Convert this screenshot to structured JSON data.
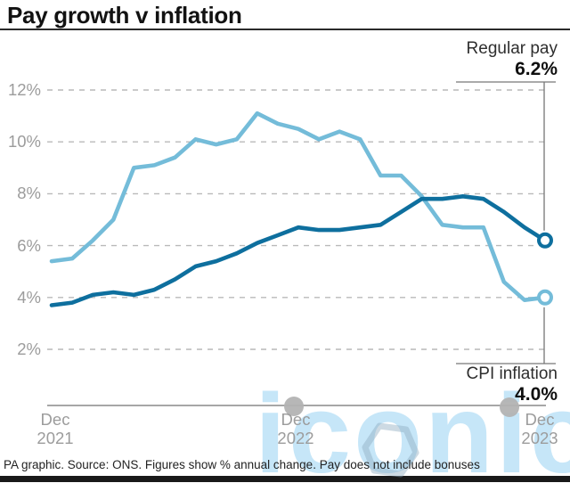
{
  "title": "Pay growth v inflation",
  "annotations": {
    "regular_pay_label": "Regular pay",
    "regular_pay_value": "6.2%",
    "cpi_label": "CPI inflation",
    "cpi_value": "4.0%"
  },
  "footer": "PA graphic. Source: ONS. Figures show % annual change. Pay does not include bonuses",
  "watermark": {
    "text": "iconic"
  },
  "colors": {
    "regular_pay": "#0e6f9e",
    "cpi_inflation": "#74bcd9",
    "gridline": "#b9b9b9",
    "axis": "#8a8a8a",
    "annotation_line": "#777777",
    "axis_text": "#9c9c9c"
  },
  "chart_data": {
    "type": "line",
    "title": "Pay growth v inflation",
    "xlabel": "",
    "ylabel": "% annual change",
    "ylim": [
      2,
      12
    ],
    "grid": "horizontal dashed",
    "yticks": [
      "12%",
      "10%",
      "8%",
      "6%",
      "4%",
      "2%"
    ],
    "ytick_values": [
      12,
      10,
      8,
      6,
      4,
      2
    ],
    "xticks": [
      {
        "line1": "Dec",
        "line2": "2021"
      },
      {
        "line1": "Dec",
        "line2": "2022"
      },
      {
        "line1": "Dec",
        "line2": "2023"
      }
    ],
    "xtick_positions": [
      0,
      12,
      24
    ],
    "x": [
      "Dec 2021",
      "Jan 2022",
      "Feb 2022",
      "Mar 2022",
      "Apr 2022",
      "May 2022",
      "Jun 2022",
      "Jul 2022",
      "Aug 2022",
      "Sep 2022",
      "Oct 2022",
      "Nov 2022",
      "Dec 2022",
      "Jan 2023",
      "Feb 2023",
      "Mar 2023",
      "Apr 2023",
      "May 2023",
      "Jun 2023",
      "Jul 2023",
      "Aug 2023",
      "Sep 2023",
      "Oct 2023",
      "Nov 2023",
      "Dec 2023"
    ],
    "series": [
      {
        "name": "CPI inflation",
        "color": "#74bcd9",
        "end_label": "4.0%",
        "annotation_side": "bottom",
        "values": [
          5.4,
          5.5,
          6.2,
          7.0,
          9.0,
          9.1,
          9.4,
          10.1,
          9.9,
          10.1,
          11.1,
          10.7,
          10.5,
          10.1,
          10.4,
          10.1,
          8.7,
          8.7,
          7.9,
          6.8,
          6.7,
          6.7,
          4.6,
          3.9,
          4.0
        ]
      },
      {
        "name": "Regular pay",
        "color": "#0e6f9e",
        "end_label": "6.2%",
        "annotation_side": "top",
        "values": [
          3.7,
          3.8,
          4.1,
          4.2,
          4.1,
          4.3,
          4.7,
          5.2,
          5.4,
          5.7,
          6.1,
          6.4,
          6.7,
          6.6,
          6.6,
          6.7,
          6.8,
          7.3,
          7.8,
          7.8,
          7.9,
          7.8,
          7.3,
          6.7,
          6.2
        ]
      }
    ]
  }
}
